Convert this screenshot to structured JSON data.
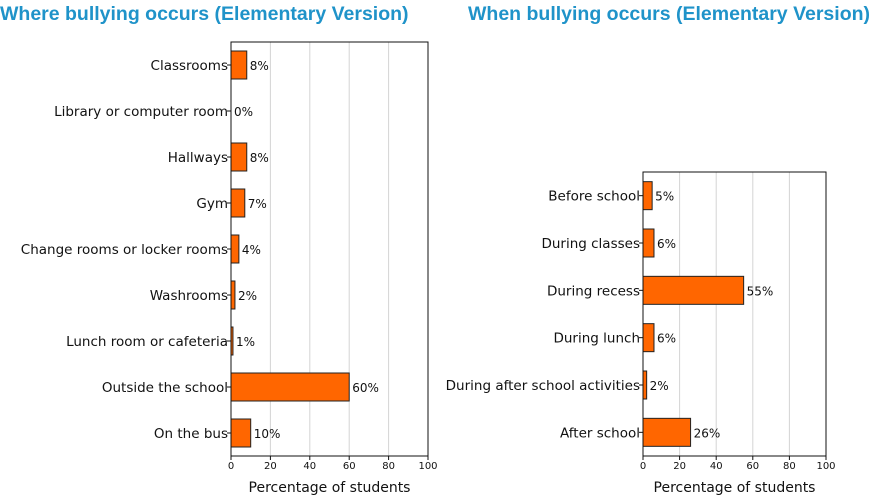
{
  "colors": {
    "bar": "#ff6600",
    "bar_edge": "#222222",
    "title": "#1f93c9",
    "grid": "#d4d4d4"
  },
  "chart_data": [
    {
      "type": "bar",
      "orientation": "horizontal",
      "title": "Where bullying occurs (Elementary Version)",
      "categories": [
        "Classrooms",
        "Library or computer room",
        "Hallways",
        "Gym",
        "Change rooms or locker rooms",
        "Washrooms",
        "Lunch room or cafeteria",
        "Outside the school",
        "On the bus"
      ],
      "values": [
        8,
        0,
        8,
        7,
        4,
        2,
        1,
        60,
        10
      ],
      "value_labels": [
        "8%",
        "0%",
        "8%",
        "7%",
        "4%",
        "2%",
        "1%",
        "60%",
        "10%"
      ],
      "xlabel": "Percentage of students",
      "xlim": [
        0,
        100
      ],
      "xticks": [
        "0",
        "20",
        "40",
        "60",
        "80",
        "100"
      ],
      "grid": "vertical"
    },
    {
      "type": "bar",
      "orientation": "horizontal",
      "title": "When bullying occurs (Elementary Version)",
      "categories": [
        "Before school",
        "During classes",
        "During recess",
        "During lunch",
        "During after school activities",
        "After school"
      ],
      "values": [
        5,
        6,
        55,
        6,
        2,
        26
      ],
      "value_labels": [
        "5%",
        "6%",
        "55%",
        "6%",
        "2%",
        "26%"
      ],
      "xlabel": "Percentage of students",
      "xlim": [
        0,
        100
      ],
      "xticks": [
        "0",
        "20",
        "40",
        "60",
        "80",
        "100"
      ],
      "grid": "vertical"
    }
  ]
}
